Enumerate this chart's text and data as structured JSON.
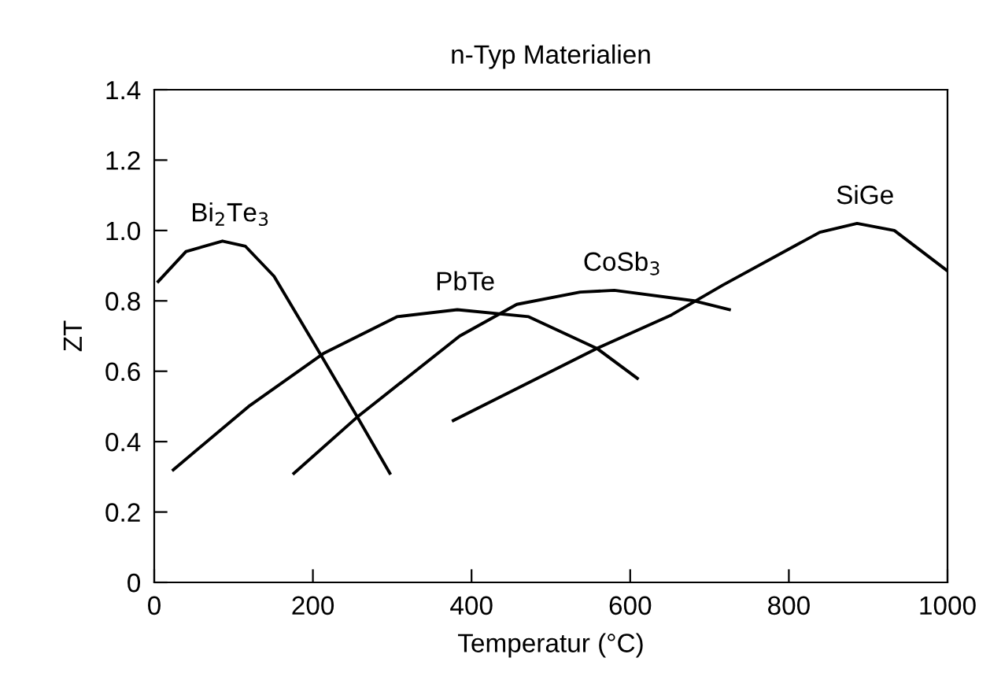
{
  "chart_data": {
    "type": "line",
    "title": "n-Typ Materialien",
    "xlabel": "Temperatur (°C)",
    "ylabel": "ZT",
    "xlim": [
      0,
      1000
    ],
    "ylim": [
      0,
      1.4
    ],
    "xticks": [
      0,
      200,
      400,
      600,
      800,
      1000
    ],
    "yticks": [
      0,
      0.2,
      0.4,
      0.6,
      0.8,
      {
        "value": 1.0,
        "label": "1.0"
      },
      1.2,
      1.4
    ],
    "grid": false,
    "legend": false,
    "marker": "none",
    "line_style": "solid",
    "series": [
      {
        "name": "Bi$_{2}$Te$_{3}$",
        "color": "#000000",
        "x": [
          5,
          40,
          86,
          115,
          151,
          209,
          256,
          297
        ],
        "values": [
          0.855,
          0.94,
          0.97,
          0.955,
          0.87,
          0.65,
          0.47,
          0.31
        ]
      },
      {
        "name": "PbTe",
        "color": "#000000",
        "x": [
          24,
          119,
          213,
          306,
          382,
          472,
          558,
          609
        ],
        "values": [
          0.32,
          0.5,
          0.65,
          0.755,
          0.775,
          0.755,
          0.665,
          0.58
        ]
      },
      {
        "name": "CoSb$_{3}$",
        "color": "#000000",
        "x": [
          176,
          256,
          385,
          457,
          537,
          580,
          681,
          725
        ],
        "values": [
          0.31,
          0.47,
          0.7,
          0.79,
          0.825,
          0.83,
          0.8,
          0.775
        ]
      },
      {
        "name": "SiGe",
        "color": "#000000",
        "x": [
          377,
          558,
          652,
          717,
          839,
          886,
          933,
          1000
        ],
        "values": [
          0.46,
          0.665,
          0.76,
          0.845,
          0.995,
          1.02,
          1.0,
          0.885
        ]
      }
    ]
  }
}
